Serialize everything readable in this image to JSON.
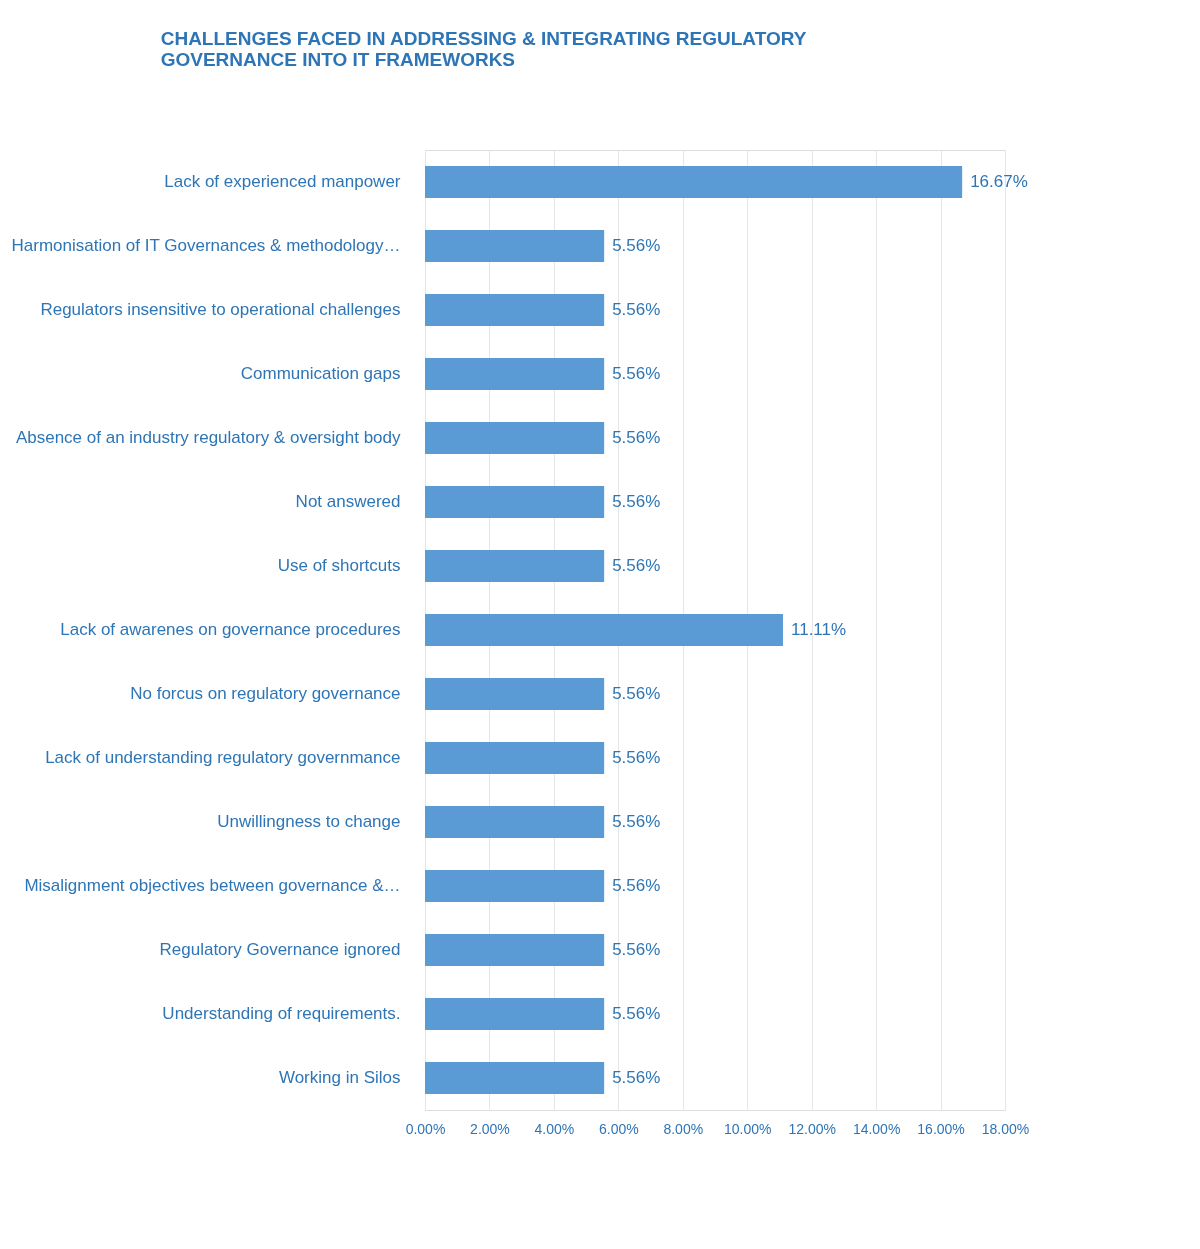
{
  "chart_data": {
    "type": "bar",
    "orientation": "horizontal",
    "title": "CHALLENGES FACED IN ADDRESSING & INTEGRATING REGULATORY GOVERNANCE INTO IT FRAMEWORKS",
    "categories": [
      "Lack of experienced manpower",
      "Harmonisation of IT Governances & methodology…",
      "Regulators insensitive to operational challenges",
      "Communication gaps",
      "Absence of an industry regulatory & oversight body",
      "Not answered",
      "Use of shortcuts",
      "Lack of awarenes on governance procedures",
      "No forcus on regulatory governance",
      "Lack of understanding regulatory governmance",
      "Unwillingness to change",
      "Misalignment objectives between governance &…",
      "Regulatory Governance ignored",
      "Understanding of requirements.",
      "Working in Silos"
    ],
    "values": [
      16.67,
      5.56,
      5.56,
      5.56,
      5.56,
      5.56,
      5.56,
      11.11,
      5.56,
      5.56,
      5.56,
      5.56,
      5.56,
      5.56,
      5.56
    ],
    "value_labels": [
      "16.67%",
      "5.56%",
      "5.56%",
      "5.56%",
      "5.56%",
      "5.56%",
      "5.56%",
      "11.11%",
      "5.56%",
      "5.56%",
      "5.56%",
      "5.56%",
      "5.56%",
      "5.56%",
      "5.56%"
    ],
    "color": "#5b9bd5",
    "xlim": [
      0,
      18
    ],
    "xticks": [
      {
        "value": 0,
        "label": "0.00%"
      },
      {
        "value": 2,
        "label": "2.00%"
      },
      {
        "value": 4,
        "label": "4.00%"
      },
      {
        "value": 6,
        "label": "6.00%"
      },
      {
        "value": 8,
        "label": "8.00%"
      },
      {
        "value": 10,
        "label": "10.00%"
      },
      {
        "value": 12,
        "label": "12.00%"
      },
      {
        "value": 14,
        "label": "14.00%"
      },
      {
        "value": 16,
        "label": "16.00%"
      },
      {
        "value": 18,
        "label": "18.00%"
      }
    ],
    "grid": "x"
  }
}
